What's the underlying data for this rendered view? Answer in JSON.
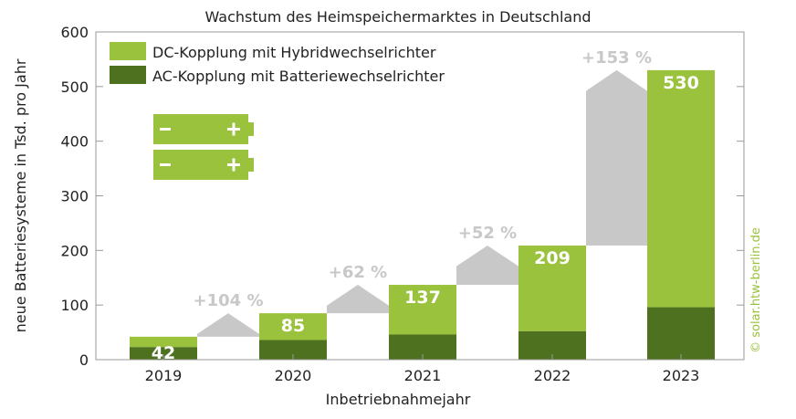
{
  "chart_data": {
    "type": "bar",
    "title": "Wachstum des Heimspeichermarktes in Deutschland",
    "xlabel": "Inbetriebnahmejahr",
    "ylabel": "neue Batteriesysteme in Tsd. pro Jahr",
    "ylim": [
      0,
      600
    ],
    "yticks": [
      0,
      100,
      200,
      300,
      400,
      500,
      600
    ],
    "categories": [
      "2019",
      "2020",
      "2021",
      "2022",
      "2023"
    ],
    "totals": [
      42,
      85,
      137,
      209,
      530
    ],
    "series": [
      {
        "name": "AC-Kopplung mit Batteriewechselrichter",
        "color": "#4e7120",
        "values": [
          23,
          36,
          46,
          52,
          96
        ]
      },
      {
        "name": "DC-Kopplung mit Hybridwechselrichter",
        "color": "#9bc23c",
        "values": [
          19,
          49,
          91,
          157,
          434
        ]
      }
    ],
    "growth_labels": [
      "+104 %",
      "+62 %",
      "+52 %",
      "+153 %"
    ],
    "growth_color": "#c8c8c8",
    "legend_placement": "top-left",
    "credit": "© solar.htw-berlin.de",
    "credit_color": "#9bc23c"
  }
}
